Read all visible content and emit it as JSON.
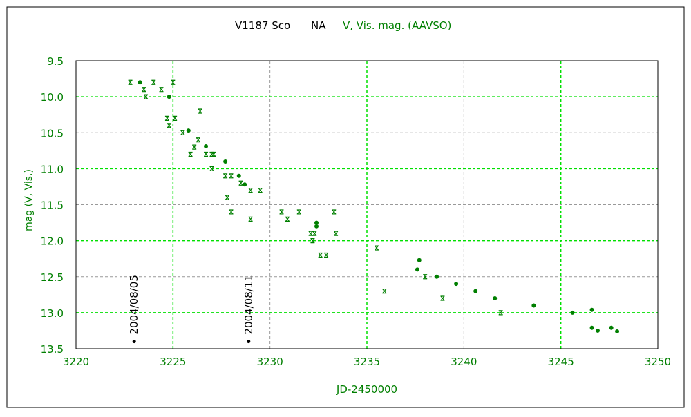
{
  "chart_data": {
    "type": "scatter",
    "title": {
      "star": "V1187 Sco",
      "type": "NA",
      "series_label": "V, Vis. mag. (AAVSO)"
    },
    "xlabel": "JD-2450000",
    "ylabel": "mag (V, Vis.)",
    "xlim": [
      3220,
      3250
    ],
    "ylim": [
      13.5,
      9.5
    ],
    "y_inverted": true,
    "x_ticks": [
      3220,
      3225,
      3230,
      3235,
      3240,
      3245,
      3250
    ],
    "y_ticks": [
      "9.5",
      "10.0",
      "10.5",
      "11.0",
      "11.5",
      "12.0",
      "12.5",
      "13.0",
      "13.5"
    ],
    "grid": true,
    "colors": {
      "data": "#007f00",
      "grid_major": "#00e000",
      "grid_minor": "#999999",
      "axis_text": "#007f00",
      "frame": "#000000"
    },
    "series": [
      {
        "name": "V",
        "marker": "dot",
        "points": [
          [
            3223.3,
            9.8
          ],
          [
            3224.8,
            10.0
          ],
          [
            3225.8,
            10.47
          ],
          [
            3226.7,
            10.69
          ],
          [
            3227.7,
            10.9
          ],
          [
            3228.4,
            11.1
          ],
          [
            3228.7,
            11.22
          ],
          [
            3232.4,
            11.75
          ],
          [
            3232.4,
            11.8
          ],
          [
            3237.7,
            12.27
          ],
          [
            3237.6,
            12.4
          ],
          [
            3238.6,
            12.5
          ],
          [
            3239.6,
            12.6
          ],
          [
            3240.6,
            12.7
          ],
          [
            3241.6,
            12.8
          ],
          [
            3243.6,
            12.9
          ],
          [
            3245.6,
            13.0
          ],
          [
            3246.6,
            12.96
          ],
          [
            3246.6,
            13.21
          ],
          [
            3246.9,
            13.25
          ],
          [
            3247.6,
            13.21
          ],
          [
            3247.9,
            13.26
          ]
        ]
      },
      {
        "name": "Vis.",
        "marker": "cross",
        "points": [
          [
            3222.8,
            9.8
          ],
          [
            3223.5,
            9.9
          ],
          [
            3223.6,
            10.0
          ],
          [
            3224.0,
            9.8
          ],
          [
            3224.4,
            9.9
          ],
          [
            3225.0,
            9.8
          ],
          [
            3224.7,
            10.3
          ],
          [
            3224.8,
            10.4
          ],
          [
            3225.1,
            10.3
          ],
          [
            3225.5,
            10.5
          ],
          [
            3225.9,
            10.8
          ],
          [
            3226.1,
            10.7
          ],
          [
            3226.3,
            10.6
          ],
          [
            3226.4,
            10.2
          ],
          [
            3226.7,
            10.8
          ],
          [
            3227.0,
            10.8
          ],
          [
            3227.1,
            10.8
          ],
          [
            3227.0,
            11.0
          ],
          [
            3227.7,
            11.1
          ],
          [
            3227.8,
            11.4
          ],
          [
            3228.0,
            11.1
          ],
          [
            3228.0,
            11.6
          ],
          [
            3228.5,
            11.2
          ],
          [
            3229.0,
            11.3
          ],
          [
            3229.0,
            11.7
          ],
          [
            3229.5,
            11.3
          ],
          [
            3230.6,
            11.6
          ],
          [
            3230.9,
            11.7
          ],
          [
            3231.5,
            11.6
          ],
          [
            3232.1,
            11.9
          ],
          [
            3232.2,
            12.0
          ],
          [
            3232.3,
            11.9
          ],
          [
            3232.6,
            12.2
          ],
          [
            3232.9,
            12.2
          ],
          [
            3233.3,
            11.6
          ],
          [
            3233.4,
            11.9
          ],
          [
            3235.5,
            12.1
          ],
          [
            3235.9,
            12.7
          ],
          [
            3238.0,
            12.5
          ],
          [
            3238.9,
            12.8
          ],
          [
            3241.9,
            13.0
          ]
        ]
      }
    ],
    "annotations": [
      {
        "label": "2004/08/05",
        "x": 3223.0,
        "y": 13.4
      },
      {
        "label": "2004/08/11",
        "x": 3228.9,
        "y": 13.4
      }
    ]
  }
}
